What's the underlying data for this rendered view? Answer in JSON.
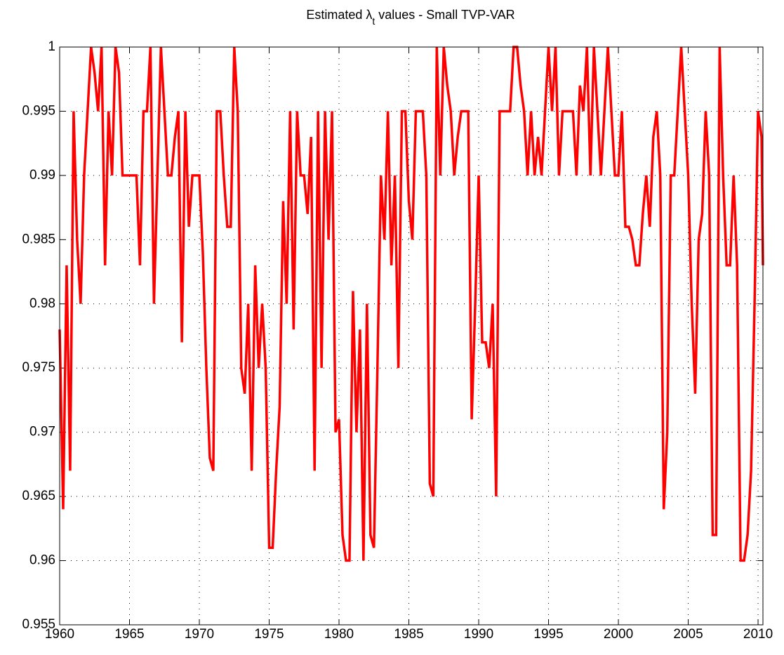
{
  "chart_data": {
    "type": "line",
    "title": {
      "before": "Estimated λ",
      "subscript": "t",
      "after": " values - Small TVP-VAR"
    },
    "xlim": [
      1960,
      2010.35
    ],
    "ylim": [
      0.955,
      1
    ],
    "xticks": [
      1960,
      1965,
      1970,
      1975,
      1980,
      1985,
      1990,
      1995,
      2000,
      2005,
      2010
    ],
    "yticks": [
      0.955,
      0.96,
      0.965,
      0.97,
      0.975,
      0.98,
      0.985,
      0.99,
      0.995,
      1
    ],
    "grid": true,
    "x": [
      1960,
      1960.25,
      1960.5,
      1960.75,
      1961,
      1961.25,
      1961.5,
      1961.75,
      1962,
      1962.25,
      1962.5,
      1962.75,
      1963,
      1963.25,
      1963.5,
      1963.75,
      1964,
      1964.25,
      1964.5,
      1964.75,
      1965,
      1965.25,
      1965.5,
      1965.75,
      1966,
      1966.25,
      1966.5,
      1966.75,
      1967,
      1967.25,
      1967.5,
      1967.75,
      1968,
      1968.25,
      1968.5,
      1968.75,
      1969,
      1969.25,
      1969.5,
      1969.75,
      1970,
      1970.25,
      1970.5,
      1970.75,
      1971,
      1971.25,
      1971.5,
      1971.75,
      1972,
      1972.25,
      1972.5,
      1972.75,
      1973,
      1973.25,
      1973.5,
      1973.75,
      1974,
      1974.25,
      1974.5,
      1974.75,
      1975,
      1975.25,
      1975.5,
      1975.75,
      1976,
      1976.25,
      1976.5,
      1976.75,
      1977,
      1977.25,
      1977.5,
      1977.75,
      1978,
      1978.25,
      1978.5,
      1978.75,
      1979,
      1979.25,
      1979.5,
      1979.75,
      1980,
      1980.25,
      1980.5,
      1980.75,
      1981,
      1981.25,
      1981.5,
      1981.75,
      1982,
      1982.25,
      1982.5,
      1982.75,
      1983,
      1983.25,
      1983.5,
      1983.75,
      1984,
      1984.25,
      1984.5,
      1984.75,
      1985,
      1985.25,
      1985.5,
      1985.75,
      1986,
      1986.25,
      1986.5,
      1986.75,
      1987,
      1987.25,
      1987.5,
      1987.75,
      1988,
      1988.25,
      1988.5,
      1988.75,
      1989,
      1989.25,
      1989.5,
      1989.75,
      1990,
      1990.25,
      1990.5,
      1990.75,
      1991,
      1991.25,
      1991.5,
      1991.75,
      1992,
      1992.25,
      1992.5,
      1992.75,
      1993,
      1993.25,
      1993.5,
      1993.75,
      1994,
      1994.25,
      1994.5,
      1994.75,
      1995,
      1995.25,
      1995.5,
      1995.75,
      1996,
      1996.25,
      1996.5,
      1996.75,
      1997,
      1997.25,
      1997.5,
      1997.75,
      1998,
      1998.25,
      1998.5,
      1998.75,
      1999,
      1999.25,
      1999.5,
      1999.75,
      2000,
      2000.25,
      2000.5,
      2000.75,
      2001,
      2001.25,
      2001.5,
      2001.75,
      2002,
      2002.25,
      2002.5,
      2002.75,
      2003,
      2003.25,
      2003.5,
      2003.75,
      2004,
      2004.25,
      2004.5,
      2004.75,
      2005,
      2005.25,
      2005.5,
      2005.75,
      2006,
      2006.25,
      2006.5,
      2006.75,
      2007,
      2007.25,
      2007.5,
      2007.75,
      2008,
      2008.25,
      2008.5,
      2008.75,
      2009,
      2009.25,
      2009.5,
      2009.75,
      2010,
      2010.25,
      2010.35
    ],
    "series": [
      {
        "color": "#ff0000",
        "values": [
          0.978,
          0.964,
          0.983,
          0.967,
          0.995,
          0.985,
          0.98,
          0.99,
          0.995,
          1,
          0.998,
          0.995,
          1,
          0.983,
          0.995,
          0.99,
          1,
          0.998,
          0.99,
          0.99,
          0.99,
          0.99,
          0.99,
          0.983,
          0.995,
          0.995,
          1,
          0.98,
          0.99,
          1,
          0.995,
          0.99,
          0.99,
          0.993,
          0.995,
          0.977,
          0.995,
          0.986,
          0.99,
          0.99,
          0.99,
          0.984,
          0.975,
          0.968,
          0.967,
          0.995,
          0.995,
          0.99,
          0.986,
          0.986,
          1,
          0.995,
          0.975,
          0.973,
          0.98,
          0.967,
          0.983,
          0.975,
          0.98,
          0.975,
          0.961,
          0.961,
          0.967,
          0.972,
          0.988,
          0.98,
          0.995,
          0.978,
          0.995,
          0.99,
          0.99,
          0.987,
          0.993,
          0.967,
          0.995,
          0.975,
          0.995,
          0.985,
          0.995,
          0.97,
          0.971,
          0.962,
          0.96,
          0.96,
          0.981,
          0.97,
          0.978,
          0.96,
          0.98,
          0.962,
          0.961,
          0.975,
          0.99,
          0.985,
          0.995,
          0.983,
          0.99,
          0.975,
          0.995,
          0.995,
          0.988,
          0.985,
          0.995,
          0.995,
          0.995,
          0.99,
          0.966,
          0.965,
          1,
          0.99,
          1,
          0.997,
          0.995,
          0.99,
          0.993,
          0.995,
          0.995,
          0.995,
          0.971,
          0.98,
          0.99,
          0.977,
          0.977,
          0.975,
          0.98,
          0.965,
          0.995,
          0.995,
          0.995,
          0.995,
          1,
          1,
          0.997,
          0.995,
          0.99,
          0.995,
          0.99,
          0.993,
          0.99,
          0.995,
          1,
          0.995,
          1,
          0.99,
          0.995,
          0.995,
          0.995,
          0.995,
          0.99,
          0.997,
          0.995,
          1,
          0.99,
          1,
          0.995,
          0.99,
          0.995,
          1,
          0.995,
          0.99,
          0.99,
          0.995,
          0.986,
          0.986,
          0.985,
          0.983,
          0.983,
          0.987,
          0.99,
          0.986,
          0.993,
          0.995,
          0.99,
          0.964,
          0.97,
          0.99,
          0.99,
          0.995,
          1,
          0.995,
          0.99,
          0.98,
          0.973,
          0.985,
          0.987,
          0.995,
          0.99,
          0.962,
          0.962,
          1,
          0.99,
          0.983,
          0.983,
          0.99,
          0.983,
          0.96,
          0.96,
          0.962,
          0.967,
          0.98,
          0.995,
          0.993,
          0.983
        ]
      }
    ]
  }
}
